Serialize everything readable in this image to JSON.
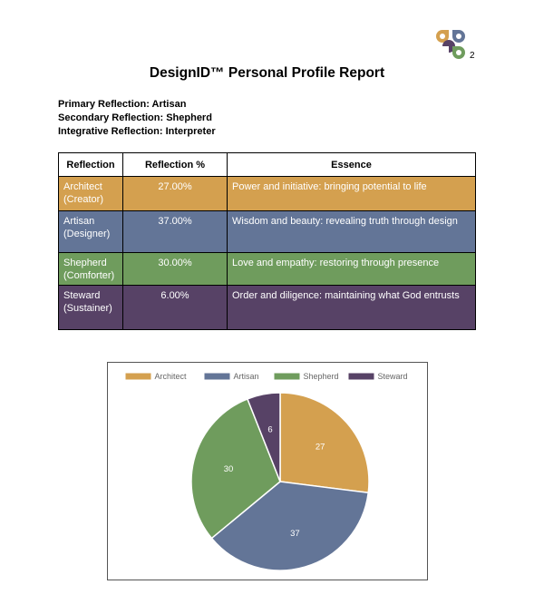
{
  "report": {
    "title": "DesignID™ Personal Profile Report",
    "logo_superscript": "2",
    "reflections": [
      {
        "label": "Primary Reflection:",
        "value": "Artisan"
      },
      {
        "label": "Secondary Reflection:",
        "value": "Shepherd"
      },
      {
        "label": "Integrative Reflection:",
        "value": "Interpreter"
      }
    ]
  },
  "table": {
    "headers": [
      "Reflection",
      "Reflection %",
      "Essence"
    ],
    "rows": [
      {
        "name": "Architect",
        "role": "(Creator)",
        "pct": "27.00%",
        "essence": "Power and initiative: bringing potential to life",
        "color": "#d4a04f"
      },
      {
        "name": "Artisan",
        "role": "(Designer)",
        "pct": "37.00%",
        "essence": "Wisdom and beauty: revealing truth through design",
        "color": "#637597"
      },
      {
        "name": "Shepherd",
        "role": "(Comforter)",
        "pct": "30.00%",
        "essence": "Love and empathy: restoring through presence",
        "color": "#6f9c5d"
      },
      {
        "name": "Steward",
        "role": "(Sustainer)",
        "pct": "6.00%",
        "essence": "Order and diligence: maintaining what God entrusts",
        "color": "#574266"
      }
    ]
  },
  "colors": {
    "architect": "#d4a04f",
    "artisan": "#637597",
    "shepherd": "#6f9c5d",
    "steward": "#574266"
  },
  "chart_data": {
    "type": "pie",
    "title": "",
    "legend_position": "top",
    "categories": [
      "Architect",
      "Artisan",
      "Shepherd",
      "Steward"
    ],
    "values": [
      27,
      37,
      30,
      6
    ],
    "labels": [
      "27",
      "37",
      "30",
      "6"
    ],
    "colors": [
      "#d4a04f",
      "#637597",
      "#6f9c5d",
      "#574266"
    ]
  }
}
